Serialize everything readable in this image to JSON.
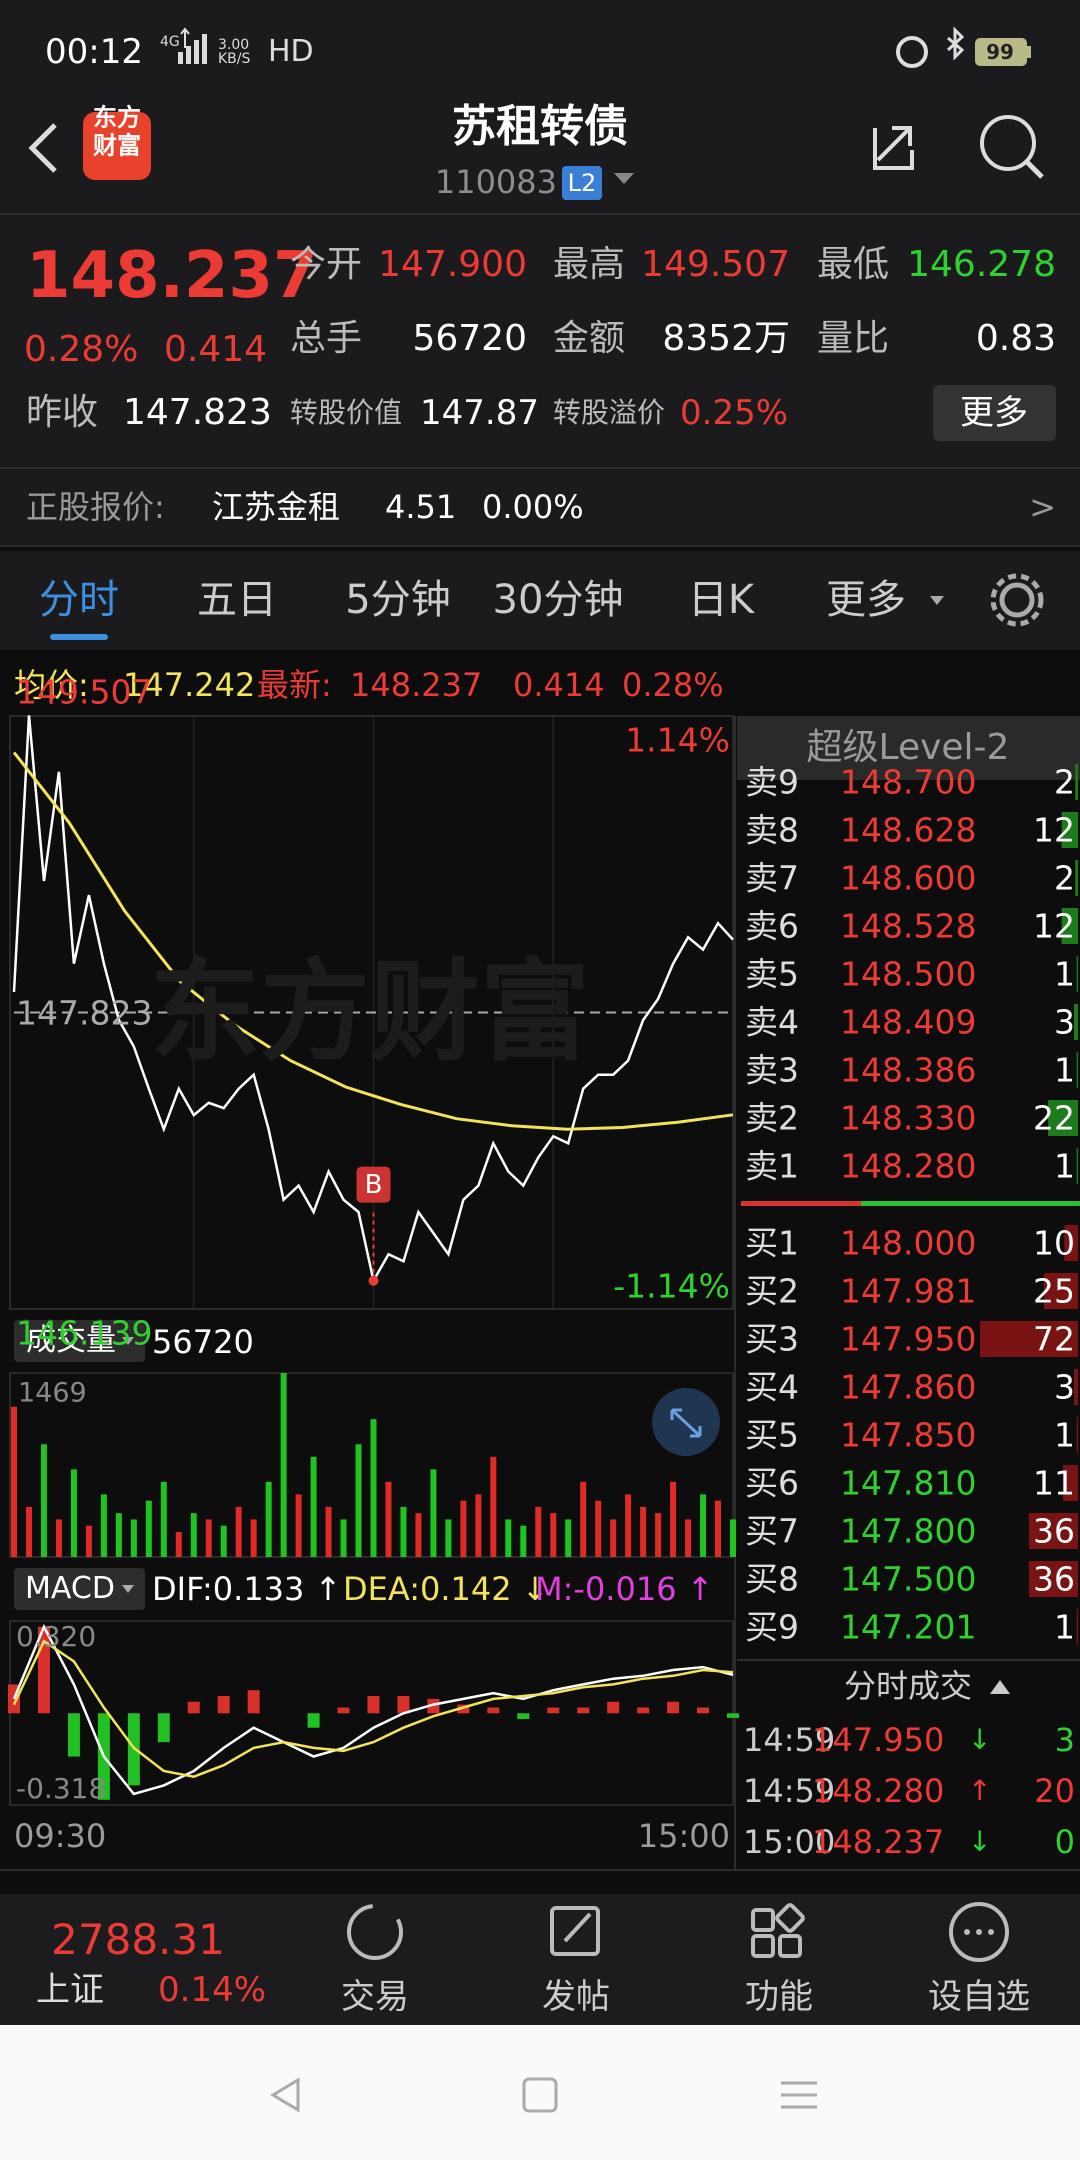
{
  "status_bar": {
    "time": "00:12",
    "network": "4G",
    "speed": "3.00 KB/S",
    "hd": "HD",
    "battery": "99"
  },
  "header": {
    "logo": [
      "东方",
      "财富"
    ],
    "title": "苏租转债",
    "code": "110083",
    "badge": "L2"
  },
  "quote": {
    "price": "148.237",
    "change_pct": "0.28%",
    "change": "0.414",
    "fields": [
      {
        "label": "今开",
        "value": "147.900"
      },
      {
        "label": "最高",
        "value": "149.507"
      },
      {
        "label": "最低",
        "value": "146.278"
      },
      {
        "label": "总手",
        "value": "56720"
      },
      {
        "label": "金额",
        "value": "8352万"
      },
      {
        "label": "量比",
        "value": "0.83"
      },
      {
        "label": "昨收",
        "value": "147.823"
      },
      {
        "label": "转股价值",
        "value": "147.87"
      },
      {
        "label": "转股溢价",
        "value": "0.25%"
      }
    ],
    "more": "更多"
  },
  "stock": {
    "label": "正股报价:",
    "name": "江苏金租",
    "price": "4.51",
    "pct": "0.00%",
    "arrow": ">"
  },
  "tabs": [
    "分时",
    "五日",
    "5分钟",
    "30分钟",
    "日K",
    "更多"
  ],
  "info": {
    "avg_label": "均价:",
    "avg": "147.242",
    "last_label": "最新:",
    "last": "148.237",
    "change": "0.414",
    "pct": "0.28%"
  },
  "price_chart": {
    "type": "line",
    "watermark": "东方财富",
    "ylim": [
      146.139,
      149.507
    ],
    "yticks": [
      146.139,
      147.823,
      149.507
    ],
    "pct_top": "1.14%",
    "pct_bottom": "-1.14%",
    "marker": "B",
    "series": [
      {
        "color": "#ffffff",
        "values": [
          147.94,
          149.51,
          148.57,
          149.19,
          148.1,
          148.49,
          148.1,
          147.78,
          147.63,
          147.39,
          147.16,
          147.39,
          147.24,
          147.31,
          147.28,
          147.39,
          147.47,
          147.16,
          146.76,
          146.84,
          146.69,
          146.92,
          146.76,
          146.69,
          146.3,
          146.45,
          146.41,
          146.69,
          146.57,
          146.45,
          146.76,
          146.84,
          147.08,
          146.92,
          146.84,
          147.0,
          147.12,
          147.08,
          147.39,
          147.47,
          147.47,
          147.55,
          147.78,
          147.9,
          148.1,
          148.25,
          148.18,
          148.33,
          148.237
        ]
      },
      {
        "color": "#f2e35a",
        "values": [
          149.3,
          148.9,
          148.4,
          148.0,
          147.75,
          147.55,
          147.4,
          147.3,
          147.22,
          147.18,
          147.16,
          147.17,
          147.2,
          147.242
        ]
      }
    ],
    "xlabels": [
      "09:30",
      "15:00"
    ]
  },
  "volume_chart": {
    "type": "bar",
    "label": "成交量",
    "total": "56720",
    "ylim": [
      0,
      1469
    ],
    "yticks": [
      1469
    ],
    "values": [
      1200,
      400,
      900,
      300,
      700,
      250,
      500,
      350,
      300,
      450,
      600,
      200,
      350,
      300,
      250,
      400,
      300,
      600,
      1469,
      500,
      800,
      400,
      300,
      900,
      1100,
      600,
      400,
      350,
      700,
      300,
      450,
      500,
      800,
      300,
      250,
      400,
      350,
      300,
      600,
      450,
      300,
      500,
      400,
      350,
      600,
      300,
      500,
      450,
      300
    ]
  },
  "macd_chart": {
    "type": "macd",
    "label": "MACD",
    "dif_label": "DIF:0.133 ↑",
    "dea_label": "DEA:0.142 ↓",
    "m_label": "M:-0.016 ↑",
    "ylim": [
      -0.318,
      0.32
    ],
    "yticks": [
      {
        "value": 0.32,
        "label": "0.320"
      },
      {
        "value": -0.318,
        "label": "-0.318"
      }
    ],
    "dif": [
      0.05,
      0.3,
      0.1,
      -0.15,
      -0.28,
      -0.25,
      -0.2,
      -0.12,
      -0.05,
      -0.1,
      -0.15,
      -0.12,
      -0.05,
      0.0,
      0.03,
      0.05,
      0.07,
      0.05,
      0.08,
      0.1,
      0.12,
      0.13,
      0.15,
      0.16,
      0.133
    ],
    "dea": [
      0.03,
      0.25,
      0.18,
      0.02,
      -0.12,
      -0.2,
      -0.22,
      -0.18,
      -0.12,
      -0.1,
      -0.12,
      -0.13,
      -0.1,
      -0.05,
      -0.01,
      0.02,
      0.05,
      0.06,
      0.07,
      0.09,
      0.1,
      0.12,
      0.13,
      0.15,
      0.142
    ],
    "m": [
      0.1,
      0.3,
      -0.15,
      -0.3,
      -0.25,
      -0.1,
      0.04,
      0.06,
      0.08,
      0.0,
      -0.05,
      0.02,
      0.06,
      0.06,
      0.05,
      0.03,
      0.02,
      -0.02,
      0.02,
      0.02,
      0.04,
      0.02,
      0.04,
      0.02,
      -0.016
    ]
  },
  "order_book": {
    "title": "超级Level-2",
    "sell": [
      {
        "label": "卖9",
        "price": "148.700",
        "qty": 2
      },
      {
        "label": "卖8",
        "price": "148.628",
        "qty": 12
      },
      {
        "label": "卖7",
        "price": "148.600",
        "qty": 2
      },
      {
        "label": "卖6",
        "price": "148.528",
        "qty": 12
      },
      {
        "label": "卖5",
        "price": "148.500",
        "qty": 1
      },
      {
        "label": "卖4",
        "price": "148.409",
        "qty": 3
      },
      {
        "label": "卖3",
        "price": "148.386",
        "qty": 1
      },
      {
        "label": "卖2",
        "price": "148.330",
        "qty": 22
      },
      {
        "label": "卖1",
        "price": "148.280",
        "qty": 1
      }
    ],
    "buy": [
      {
        "label": "买1",
        "price": "148.000",
        "qty": 10
      },
      {
        "label": "买2",
        "price": "147.981",
        "qty": 25
      },
      {
        "label": "买3",
        "price": "147.950",
        "qty": 72
      },
      {
        "label": "买4",
        "price": "147.860",
        "qty": 3
      },
      {
        "label": "买5",
        "price": "147.850",
        "qty": 1
      },
      {
        "label": "买6",
        "price": "147.810",
        "qty": 11
      },
      {
        "label": "买7",
        "price": "147.800",
        "qty": 36
      },
      {
        "label": "买8",
        "price": "147.500",
        "qty": 36
      },
      {
        "label": "买9",
        "price": "147.201",
        "qty": 1
      }
    ]
  },
  "trades": {
    "title": "分时成交",
    "rows": [
      {
        "time": "14:59",
        "price": "147.950",
        "dir": "↓",
        "qty": 3
      },
      {
        "time": "14:59",
        "price": "148.280",
        "dir": "↑",
        "qty": 20
      },
      {
        "time": "15:00",
        "price": "148.237",
        "dir": "↓",
        "qty": 0
      }
    ]
  },
  "bottom_nav": {
    "index_value": "2788.31",
    "index_name": "上证",
    "index_pct": "0.14%",
    "items": [
      "交易",
      "发帖",
      "功能",
      "设自选"
    ]
  }
}
